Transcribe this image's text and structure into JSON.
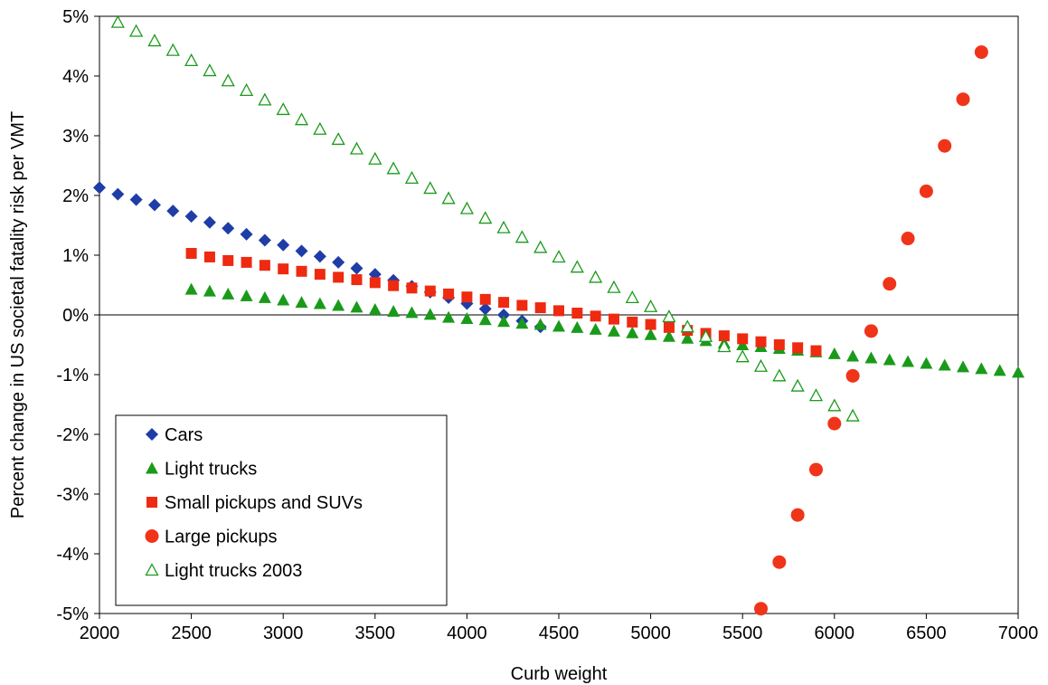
{
  "chart_data": {
    "type": "scatter",
    "title": "",
    "xlabel": "Curb weight",
    "ylabel": "Percent change in US societal fatality risk per VMT",
    "xlim": [
      2000,
      7000
    ],
    "ylim": [
      -5,
      5
    ],
    "x_ticks": [
      2000,
      2500,
      3000,
      3500,
      4000,
      4500,
      5000,
      5500,
      6000,
      6500,
      7000
    ],
    "y_ticks": [
      -5,
      -4,
      -3,
      -2,
      -1,
      0,
      1,
      2,
      3,
      4,
      5
    ],
    "x_tick_labels": [
      "2000",
      "2500",
      "3000",
      "3500",
      "4000",
      "4500",
      "5000",
      "5500",
      "6000",
      "6500",
      "7000"
    ],
    "y_tick_labels": [
      "-5%",
      "-4%",
      "-3%",
      "-2%",
      "-1%",
      "0%",
      "1%",
      "2%",
      "3%",
      "4%",
      "5%"
    ],
    "grid": false,
    "legend_position": "bottom-left",
    "series": [
      {
        "name": "Cars",
        "marker": "diamond",
        "color": "#1f3da6",
        "points": [
          [
            2000,
            2.13
          ],
          [
            2100,
            2.02
          ],
          [
            2200,
            1.93
          ],
          [
            2300,
            1.84
          ],
          [
            2400,
            1.74
          ],
          [
            2500,
            1.65
          ],
          [
            2600,
            1.55
          ],
          [
            2700,
            1.45
          ],
          [
            2800,
            1.35
          ],
          [
            2900,
            1.25
          ],
          [
            3000,
            1.17
          ],
          [
            3100,
            1.07
          ],
          [
            3200,
            0.98
          ],
          [
            3300,
            0.88
          ],
          [
            3400,
            0.78
          ],
          [
            3500,
            0.68
          ],
          [
            3600,
            0.58
          ],
          [
            3700,
            0.48
          ],
          [
            3800,
            0.38
          ],
          [
            3900,
            0.29
          ],
          [
            4000,
            0.19
          ],
          [
            4100,
            0.1
          ],
          [
            4200,
            0.0
          ],
          [
            4300,
            -0.1
          ],
          [
            4400,
            -0.2
          ]
        ]
      },
      {
        "name": "Light trucks",
        "marker": "triangle-filled",
        "color": "#1a9a1a",
        "points": [
          [
            2500,
            0.43
          ],
          [
            2600,
            0.4
          ],
          [
            2700,
            0.35
          ],
          [
            2800,
            0.32
          ],
          [
            2900,
            0.29
          ],
          [
            3000,
            0.25
          ],
          [
            3100,
            0.21
          ],
          [
            3200,
            0.19
          ],
          [
            3300,
            0.16
          ],
          [
            3400,
            0.13
          ],
          [
            3500,
            0.09
          ],
          [
            3600,
            0.06
          ],
          [
            3700,
            0.04
          ],
          [
            3800,
            0.01
          ],
          [
            3900,
            -0.04
          ],
          [
            4000,
            -0.06
          ],
          [
            4100,
            -0.08
          ],
          [
            4200,
            -0.11
          ],
          [
            4300,
            -0.14
          ],
          [
            4400,
            -0.16
          ],
          [
            4500,
            -0.19
          ],
          [
            4600,
            -0.21
          ],
          [
            4700,
            -0.24
          ],
          [
            4800,
            -0.27
          ],
          [
            4900,
            -0.3
          ],
          [
            5000,
            -0.33
          ],
          [
            5100,
            -0.36
          ],
          [
            5200,
            -0.39
          ],
          [
            5300,
            -0.43
          ],
          [
            5400,
            -0.47
          ],
          [
            5500,
            -0.5
          ],
          [
            5600,
            -0.53
          ],
          [
            5700,
            -0.56
          ],
          [
            5800,
            -0.59
          ],
          [
            5900,
            -0.62
          ],
          [
            6000,
            -0.65
          ],
          [
            6100,
            -0.69
          ],
          [
            6200,
            -0.72
          ],
          [
            6300,
            -0.75
          ],
          [
            6400,
            -0.78
          ],
          [
            6500,
            -0.81
          ],
          [
            6600,
            -0.84
          ],
          [
            6700,
            -0.87
          ],
          [
            6800,
            -0.9
          ],
          [
            6900,
            -0.93
          ],
          [
            7000,
            -0.96
          ]
        ]
      },
      {
        "name": "Small pickups and SUVs",
        "marker": "square",
        "color": "#ee2a10",
        "points": [
          [
            2500,
            1.03
          ],
          [
            2600,
            0.97
          ],
          [
            2700,
            0.91
          ],
          [
            2800,
            0.88
          ],
          [
            2900,
            0.83
          ],
          [
            3000,
            0.77
          ],
          [
            3100,
            0.73
          ],
          [
            3200,
            0.68
          ],
          [
            3300,
            0.63
          ],
          [
            3400,
            0.59
          ],
          [
            3500,
            0.54
          ],
          [
            3600,
            0.49
          ],
          [
            3700,
            0.45
          ],
          [
            3800,
            0.4
          ],
          [
            3900,
            0.35
          ],
          [
            4000,
            0.3
          ],
          [
            4100,
            0.26
          ],
          [
            4200,
            0.21
          ],
          [
            4300,
            0.16
          ],
          [
            4400,
            0.12
          ],
          [
            4500,
            0.07
          ],
          [
            4600,
            0.03
          ],
          [
            4700,
            -0.02
          ],
          [
            4800,
            -0.07
          ],
          [
            4900,
            -0.12
          ],
          [
            5000,
            -0.16
          ],
          [
            5100,
            -0.21
          ],
          [
            5200,
            -0.26
          ],
          [
            5300,
            -0.31
          ],
          [
            5400,
            -0.35
          ],
          [
            5500,
            -0.4
          ],
          [
            5600,
            -0.45
          ],
          [
            5700,
            -0.5
          ],
          [
            5800,
            -0.55
          ],
          [
            5900,
            -0.6
          ]
        ]
      },
      {
        "name": "Large pickups",
        "marker": "circle",
        "color": "#f0341a",
        "points": [
          [
            5600,
            -4.92
          ],
          [
            5700,
            -4.14
          ],
          [
            5800,
            -3.35
          ],
          [
            5900,
            -2.59
          ],
          [
            6000,
            -1.82
          ],
          [
            6100,
            -1.02
          ],
          [
            6200,
            -0.27
          ],
          [
            6300,
            0.52
          ],
          [
            6400,
            1.28
          ],
          [
            6500,
            2.07
          ],
          [
            6600,
            2.83
          ],
          [
            6700,
            3.61
          ],
          [
            6800,
            4.4
          ]
        ]
      },
      {
        "name": "Light trucks 2003",
        "marker": "triangle-open",
        "color": "#1a9a1a",
        "points": [
          [
            2100,
            4.9
          ],
          [
            2200,
            4.75
          ],
          [
            2300,
            4.59
          ],
          [
            2400,
            4.43
          ],
          [
            2500,
            4.26
          ],
          [
            2600,
            4.09
          ],
          [
            2700,
            3.92
          ],
          [
            2800,
            3.76
          ],
          [
            2900,
            3.6
          ],
          [
            3000,
            3.44
          ],
          [
            3100,
            3.27
          ],
          [
            3200,
            3.11
          ],
          [
            3300,
            2.94
          ],
          [
            3400,
            2.78
          ],
          [
            3500,
            2.61
          ],
          [
            3600,
            2.45
          ],
          [
            3700,
            2.29
          ],
          [
            3800,
            2.12
          ],
          [
            3900,
            1.95
          ],
          [
            4000,
            1.78
          ],
          [
            4100,
            1.62
          ],
          [
            4200,
            1.46
          ],
          [
            4300,
            1.3
          ],
          [
            4400,
            1.13
          ],
          [
            4500,
            0.97
          ],
          [
            4600,
            0.8
          ],
          [
            4700,
            0.63
          ],
          [
            4800,
            0.46
          ],
          [
            4900,
            0.29
          ],
          [
            5000,
            0.14
          ],
          [
            5100,
            -0.03
          ],
          [
            5200,
            -0.2
          ],
          [
            5300,
            -0.36
          ],
          [
            5400,
            -0.53
          ],
          [
            5500,
            -0.7
          ],
          [
            5600,
            -0.86
          ],
          [
            5700,
            -1.02
          ],
          [
            5800,
            -1.19
          ],
          [
            5900,
            -1.35
          ],
          [
            6000,
            -1.52
          ],
          [
            6100,
            -1.69
          ]
        ]
      }
    ]
  }
}
